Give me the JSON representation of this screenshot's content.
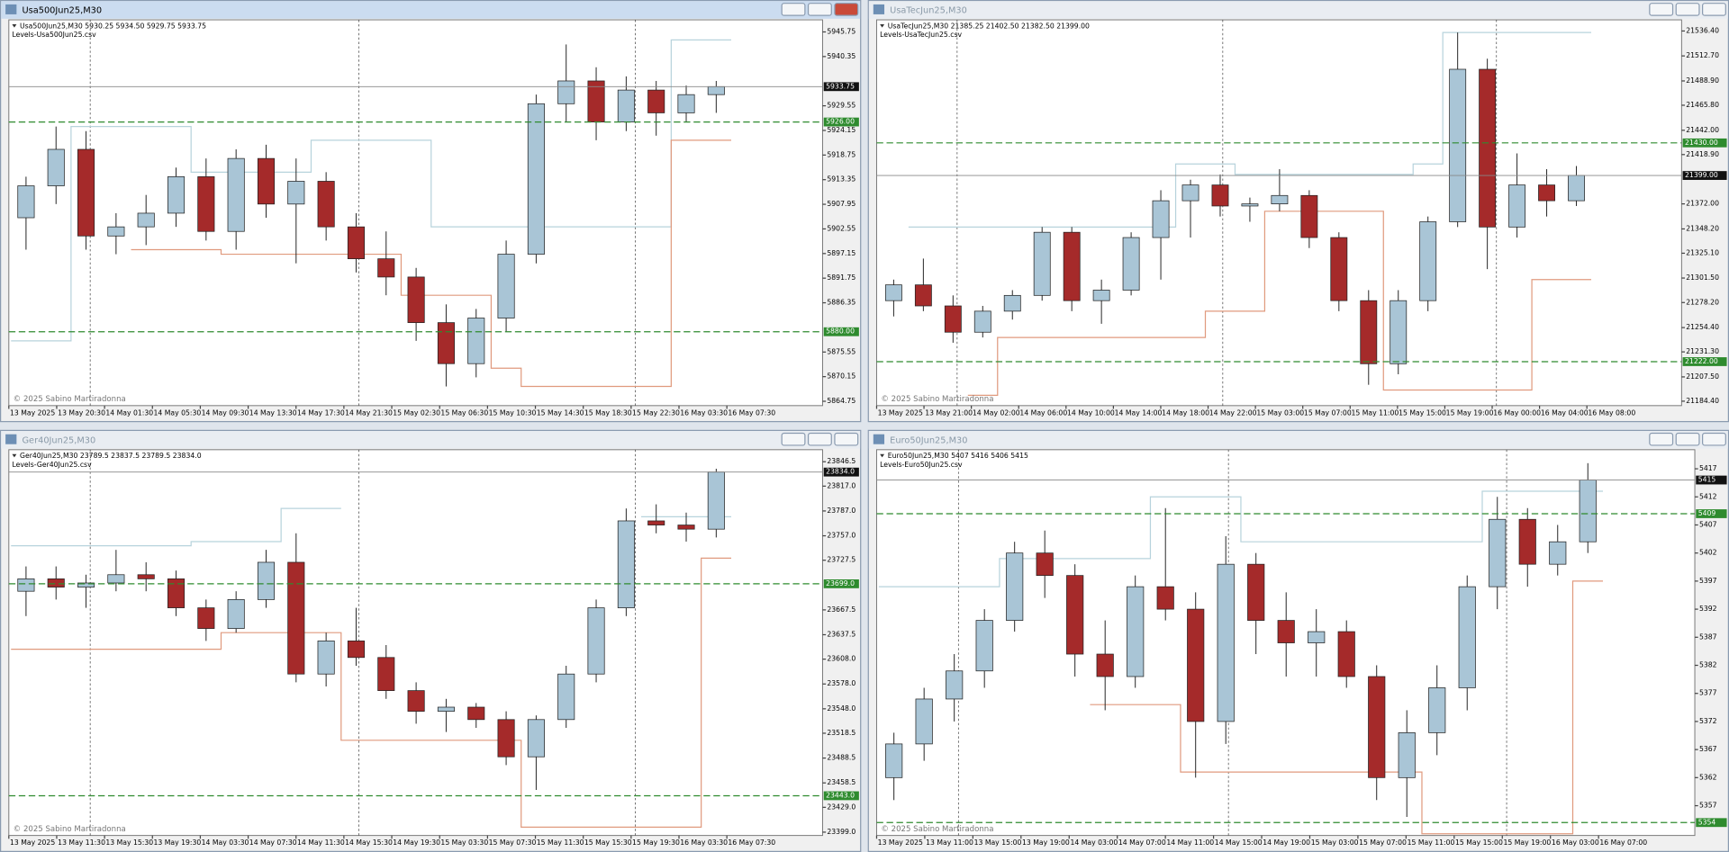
{
  "windows": [
    {
      "title": "Usa500Jun25,M30",
      "info": "Usa500Jun25,M30  5930.25 5934.50 5929.75 5933.75",
      "indicator": "Levels-Usa500Jun25.csv",
      "watermark": "© 2025 Sabino Martiradonna",
      "chart": {
        "type": "candlestick",
        "bull_color": "#a9c5d6",
        "bear_color": "#a52a2a",
        "upper_color": "#b7d3dc",
        "lower_color": "#e09a7e",
        "level_color": "#2e8b2e",
        "x_labels": [
          "13 May 2025",
          "13 May 20:30",
          "14 May 01:30",
          "14 May 05:30",
          "14 May 09:30",
          "14 May 13:30",
          "14 May 17:30",
          "14 May 21:30",
          "15 May 02:30",
          "15 May 06:30",
          "15 May 10:30",
          "15 May 14:30",
          "15 May 18:30",
          "15 May 22:30",
          "16 May 03:30",
          "16 May 07:30"
        ],
        "ylim": [
          5863.8,
          5948.4
        ],
        "yticks": [
          5945.75,
          5940.35,
          5929.55,
          5924.15,
          5918.75,
          5913.35,
          5907.95,
          5902.55,
          5897.15,
          5891.75,
          5886.35,
          5875.55,
          5870.15,
          5864.75
        ],
        "open": [
          5905,
          5912,
          5920,
          5901,
          5903,
          5906,
          5914,
          5902,
          5918,
          5908,
          5913,
          5903,
          5896,
          5892,
          5882,
          5873,
          5883,
          5897,
          5930,
          5935,
          5926,
          5933,
          5928,
          5932
        ],
        "high": [
          5914,
          5925,
          5924,
          5906,
          5910,
          5916,
          5918,
          5920,
          5921,
          5918,
          5915,
          5906,
          5902,
          5894,
          5886,
          5885,
          5900,
          5932,
          5943,
          5938,
          5936,
          5935,
          5934,
          5935
        ],
        "low": [
          5898,
          5908,
          5898,
          5897,
          5899,
          5903,
          5900,
          5898,
          5905,
          5895,
          5900,
          5893,
          5888,
          5878,
          5868,
          5870,
          5880,
          5895,
          5926,
          5922,
          5924,
          5923,
          5926,
          5928
        ],
        "close": [
          5912,
          5920,
          5901,
          5903,
          5906,
          5914,
          5902,
          5918,
          5908,
          5913,
          5903,
          5896,
          5892,
          5882,
          5873,
          5883,
          5897,
          5930,
          5935,
          5926,
          5933,
          5928,
          5932,
          5933.75
        ],
        "upper": [
          5878,
          5878,
          5925,
          5925,
          5925,
          5925,
          5915,
          5915,
          5915,
          5915,
          5922,
          5922,
          5922,
          5922,
          5903,
          5903,
          5903,
          5903,
          5903,
          5903,
          5903,
          5903,
          5944,
          5944
        ],
        "lower": [
          null,
          null,
          null,
          null,
          5898,
          5898,
          5898,
          5897,
          5897,
          5897,
          5897,
          5897,
          5897,
          5888,
          5888,
          5888,
          5872,
          5868,
          5868,
          5868,
          5868,
          5868,
          5922,
          5922
        ],
        "levels": [
          {
            "value": 5926,
            "label": "5926.00"
          },
          {
            "value": 5880,
            "label": "5880.00"
          }
        ],
        "last": 5933.75
      }
    },
    {
      "title": "UsaTecJun25,M30",
      "info": "UsaTecJun25,M30  21385.25 21402.50 21382.50 21399.00",
      "indicator": "Levels-UsaTecJun25.csv",
      "watermark": "© 2025 Sabino Martiradonna",
      "chart": {
        "type": "candlestick",
        "bull_color": "#a9c5d6",
        "bear_color": "#a52a2a",
        "upper_color": "#b7d3dc",
        "lower_color": "#e09a7e",
        "level_color": "#2e8b2e",
        "x_labels": [
          "13 May 2025",
          "13 May 21:00",
          "14 May 02:00",
          "14 May 06:00",
          "14 May 10:00",
          "14 May 14:00",
          "14 May 18:00",
          "14 May 22:00",
          "15 May 03:00",
          "15 May 07:00",
          "15 May 11:00",
          "15 May 15:00",
          "15 May 19:00",
          "16 May 00:00",
          "16 May 04:00",
          "16 May 08:00"
        ],
        "ylim": [
          21180.2,
          21547
        ],
        "yticks": [
          {
            "value": 21536.4,
            "label": "21536.40"
          },
          {
            "value": 21512.7,
            "label": "21512.70"
          },
          {
            "value": 21488.9,
            "label": "21488.90"
          },
          {
            "value": 21465.8,
            "label": "21465.80"
          },
          {
            "value": 21442,
            "label": "21442.00"
          },
          {
            "value": 21418.9,
            "label": "21418.90"
          },
          {
            "value": 21372,
            "label": "21372.00"
          },
          {
            "value": 21348.2,
            "label": "21348.20"
          },
          {
            "value": 21325.1,
            "label": "21325.10"
          },
          {
            "value": 21301.5,
            "label": "21301.50"
          },
          {
            "value": 21278.2,
            "label": "21278.20"
          },
          {
            "value": 21254.4,
            "label": "21254.40"
          },
          {
            "value": 21231.3,
            "label": "21231.30"
          },
          {
            "value": 21207.5,
            "label": "21207.50"
          },
          {
            "value": 21184.4,
            "label": "21184.40"
          }
        ],
        "open": [
          21280,
          21295,
          21275,
          21250,
          21270,
          21285,
          21345,
          21280,
          21290,
          21340,
          21375,
          21390,
          21370,
          21372,
          21380,
          21340,
          21280,
          21220,
          21280,
          21355,
          21500,
          21350,
          21390,
          21375
        ],
        "high": [
          21300,
          21320,
          21285,
          21275,
          21290,
          21350,
          21350,
          21300,
          21345,
          21385,
          21395,
          21400,
          21378,
          21405,
          21385,
          21345,
          21290,
          21290,
          21360,
          21535,
          21510,
          21420,
          21405,
          21408
        ],
        "low": [
          21265,
          21270,
          21240,
          21245,
          21262,
          21280,
          21270,
          21258,
          21285,
          21300,
          21340,
          21360,
          21355,
          21365,
          21330,
          21270,
          21200,
          21210,
          21270,
          21350,
          21310,
          21340,
          21360,
          21370
        ],
        "close": [
          21295,
          21275,
          21250,
          21270,
          21285,
          21345,
          21280,
          21290,
          21340,
          21375,
          21390,
          21370,
          21372,
          21380,
          21340,
          21280,
          21220,
          21280,
          21355,
          21500,
          21350,
          21390,
          21375,
          21399
        ],
        "upper": [
          null,
          21350,
          21350,
          21350,
          21350,
          21350,
          21350,
          21350,
          21350,
          21350,
          21410,
          21410,
          21400,
          21400,
          21400,
          21400,
          21400,
          21400,
          21410,
          21535,
          21535,
          21535,
          21535,
          21535
        ],
        "lower": [
          null,
          null,
          null,
          21190,
          21245,
          21245,
          21245,
          21245,
          21245,
          21245,
          21245,
          21270,
          21270,
          21365,
          21365,
          21365,
          21365,
          21195,
          21195,
          21195,
          21195,
          21195,
          21300,
          21300
        ],
        "levels": [
          {
            "value": 21430,
            "label": "21430.00"
          },
          {
            "value": 21222,
            "label": "21222.00"
          }
        ],
        "last": {
          "value": 21399,
          "label": "21399.00"
        }
      }
    },
    {
      "title": "Ger40Jun25,M30",
      "info": "Ger40Jun25,M30  23789.5 23837.5 23789.5 23834.0",
      "indicator": "Levels-Ger40Jun25.csv",
      "watermark": "© 2025 Sabino Martiradonna",
      "chart": {
        "type": "candlestick",
        "bull_color": "#a9c5d6",
        "bear_color": "#a52a2a",
        "upper_color": "#b7d3dc",
        "lower_color": "#e09a7e",
        "level_color": "#2e8b2e",
        "x_labels": [
          "13 May 2025",
          "13 May 11:30",
          "13 May 15:30",
          "13 May 19:30",
          "14 May 03:30",
          "14 May 07:30",
          "14 May 11:30",
          "14 May 15:30",
          "14 May 19:30",
          "15 May 03:30",
          "15 May 07:30",
          "15 May 11:30",
          "15 May 15:30",
          "15 May 19:30",
          "16 May 03:30",
          "16 May 07:30"
        ],
        "ylim": [
          23395,
          23861
        ],
        "yticks": [
          23846.5,
          {
            "value": 23817,
            "label": "23817.0"
          },
          {
            "value": 23787,
            "label": "23787.0"
          },
          {
            "value": 23757,
            "label": "23757.0"
          },
          23727.5,
          23667.5,
          23637.5,
          {
            "value": 23608,
            "label": "23608.0"
          },
          {
            "value": 23578,
            "label": "23578.0"
          },
          {
            "value": 23548,
            "label": "23548.0"
          },
          23518.5,
          23488.5,
          23458.5,
          {
            "value": 23429,
            "label": "23429.0"
          },
          {
            "value": 23399,
            "label": "23399.0"
          }
        ],
        "open": [
          23690,
          23705,
          23695,
          23700,
          23710,
          23705,
          23670,
          23645,
          23680,
          23725,
          23590,
          23630,
          23610,
          23570,
          23545,
          23550,
          23535,
          23490,
          23535,
          23590,
          23670,
          23775,
          23770,
          23765
        ],
        "high": [
          23720,
          23720,
          23710,
          23740,
          23725,
          23715,
          23680,
          23690,
          23740,
          23760,
          23640,
          23670,
          23625,
          23580,
          23560,
          23555,
          23545,
          23540,
          23600,
          23680,
          23790,
          23795,
          23785,
          23838
        ],
        "low": [
          23660,
          23680,
          23670,
          23690,
          23690,
          23660,
          23630,
          23640,
          23670,
          23580,
          23575,
          23600,
          23560,
          23530,
          23520,
          23525,
          23480,
          23450,
          23525,
          23580,
          23660,
          23760,
          23750,
          23755
        ],
        "close": [
          23705,
          23695,
          23700,
          23710,
          23705,
          23670,
          23645,
          23680,
          23725,
          23590,
          23630,
          23610,
          23570,
          23545,
          23550,
          23535,
          23490,
          23535,
          23590,
          23670,
          23775,
          23770,
          23765,
          23834
        ],
        "upper": [
          23745,
          23745,
          23745,
          23745,
          23745,
          23745,
          23750,
          23750,
          23750,
          23790,
          23790,
          null,
          null,
          null,
          null,
          null,
          null,
          null,
          null,
          null,
          null,
          23780,
          23780,
          23780
        ],
        "lower": [
          23620,
          23620,
          23620,
          23620,
          23620,
          23620,
          23620,
          23640,
          23640,
          23640,
          23640,
          23510,
          23510,
          23510,
          23510,
          23510,
          23510,
          23405,
          23405,
          23405,
          23405,
          23405,
          23405,
          23730
        ],
        "levels": [
          {
            "value": 23699,
            "label": "23699.0"
          },
          {
            "value": 23443,
            "label": "23443.0"
          }
        ],
        "last": {
          "value": 23834,
          "label": "23834.0"
        }
      }
    },
    {
      "title": "Euro50Jun25,M30",
      "info": "Euro50Jun25,M30  5407 5416 5406 5415",
      "indicator": "Levels-Euro50Jun25.csv",
      "watermark": "© 2025 Sabino Martiradonna",
      "chart": {
        "type": "candlestick",
        "bull_color": "#a9c5d6",
        "bear_color": "#a52a2a",
        "upper_color": "#b7d3dc",
        "lower_color": "#e09a7e",
        "level_color": "#2e8b2e",
        "x_labels": [
          "13 May 2025",
          "13 May 11:00",
          "13 May 15:00",
          "13 May 19:00",
          "14 May 03:00",
          "14 May 07:00",
          "14 May 11:00",
          "14 May 15:00",
          "14 May 19:00",
          "15 May 03:00",
          "15 May 07:00",
          "15 May 11:00",
          "15 May 15:00",
          "15 May 19:00",
          "16 May 03:00",
          "16 May 07:00"
        ],
        "ylim": [
          5351.7,
          5420.4
        ],
        "yticks": [
          5417,
          5412,
          5407,
          5402,
          5397,
          5392,
          5387,
          5382,
          5377,
          5372,
          5367,
          5362,
          5357
        ],
        "open": [
          5362,
          5368,
          5376,
          5381,
          5390,
          5402,
          5398,
          5384,
          5380,
          5396,
          5392,
          5372,
          5400,
          5390,
          5386,
          5388,
          5380,
          5362,
          5370,
          5378,
          5396,
          5408,
          5400,
          5404
        ],
        "high": [
          5370,
          5378,
          5384,
          5392,
          5404,
          5406,
          5400,
          5390,
          5398,
          5410,
          5395,
          5405,
          5402,
          5395,
          5392,
          5390,
          5382,
          5374,
          5382,
          5398,
          5412,
          5410,
          5407,
          5418
        ],
        "low": [
          5358,
          5365,
          5372,
          5378,
          5388,
          5394,
          5380,
          5374,
          5378,
          5390,
          5362,
          5368,
          5384,
          5380,
          5380,
          5378,
          5358,
          5355,
          5366,
          5374,
          5392,
          5396,
          5398,
          5402
        ],
        "close": [
          5368,
          5376,
          5381,
          5390,
          5402,
          5398,
          5384,
          5380,
          5396,
          5392,
          5372,
          5400,
          5390,
          5386,
          5388,
          5380,
          5362,
          5370,
          5378,
          5396,
          5408,
          5400,
          5404,
          5415
        ],
        "upper": [
          5396,
          5396,
          5396,
          5396,
          5401,
          5401,
          5401,
          5401,
          5401,
          5412,
          5412,
          5412,
          5404,
          5404,
          5404,
          5404,
          5404,
          5404,
          5404,
          5404,
          5413,
          5413,
          5413,
          5413
        ],
        "lower": [
          null,
          null,
          null,
          null,
          null,
          null,
          null,
          5375,
          5375,
          5375,
          5363,
          5363,
          5363,
          5363,
          5363,
          5363,
          5363,
          5363,
          5352,
          5352,
          5352,
          5352,
          5352,
          5397
        ],
        "levels": [
          {
            "value": 5409,
            "label": "5409"
          },
          {
            "value": 5354,
            "label": "5354"
          }
        ],
        "last": 5415
      }
    }
  ]
}
